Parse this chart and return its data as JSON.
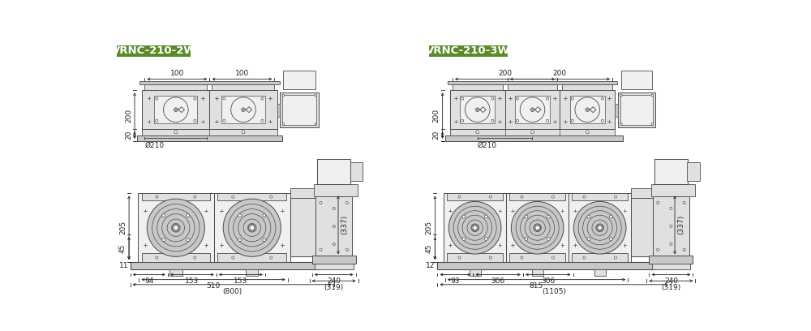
{
  "title_2w": "VRNC-210-2W",
  "title_3w": "VRNC-210-3W",
  "title_bg_color": "#5a8a2a",
  "title_text_color": "#ffffff",
  "bg_color": "#ffffff",
  "line_color": "#4a4a4a",
  "fill_light": "#e0e0e0",
  "fill_lighter": "#f0f0f0",
  "fill_mid": "#c8c8c8",
  "fill_dark": "#a8a8a8",
  "dim_color": "#222222",
  "dim_font_size": 6.5,
  "title_font_size": 9.5
}
